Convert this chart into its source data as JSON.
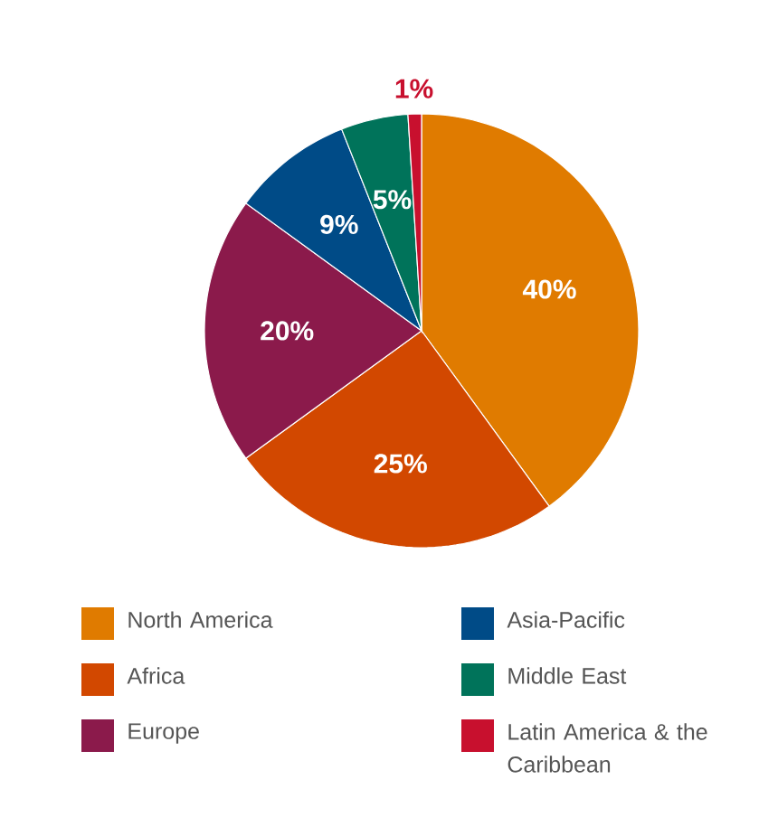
{
  "chart_data": {
    "type": "pie",
    "categories": [
      "North America",
      "Africa",
      "Europe",
      "Asia-Pacific",
      "Middle East",
      "Latin America & the Caribbean"
    ],
    "values": [
      40,
      25,
      20,
      9,
      5,
      1
    ],
    "value_labels": [
      "40%",
      "25%",
      "20%",
      "9%",
      "5%",
      "1%"
    ],
    "colors": [
      "#e07b00",
      "#d24800",
      "#8b1a4b",
      "#004b87",
      "#00735a",
      "#c8102e"
    ],
    "legend": "bottom"
  }
}
